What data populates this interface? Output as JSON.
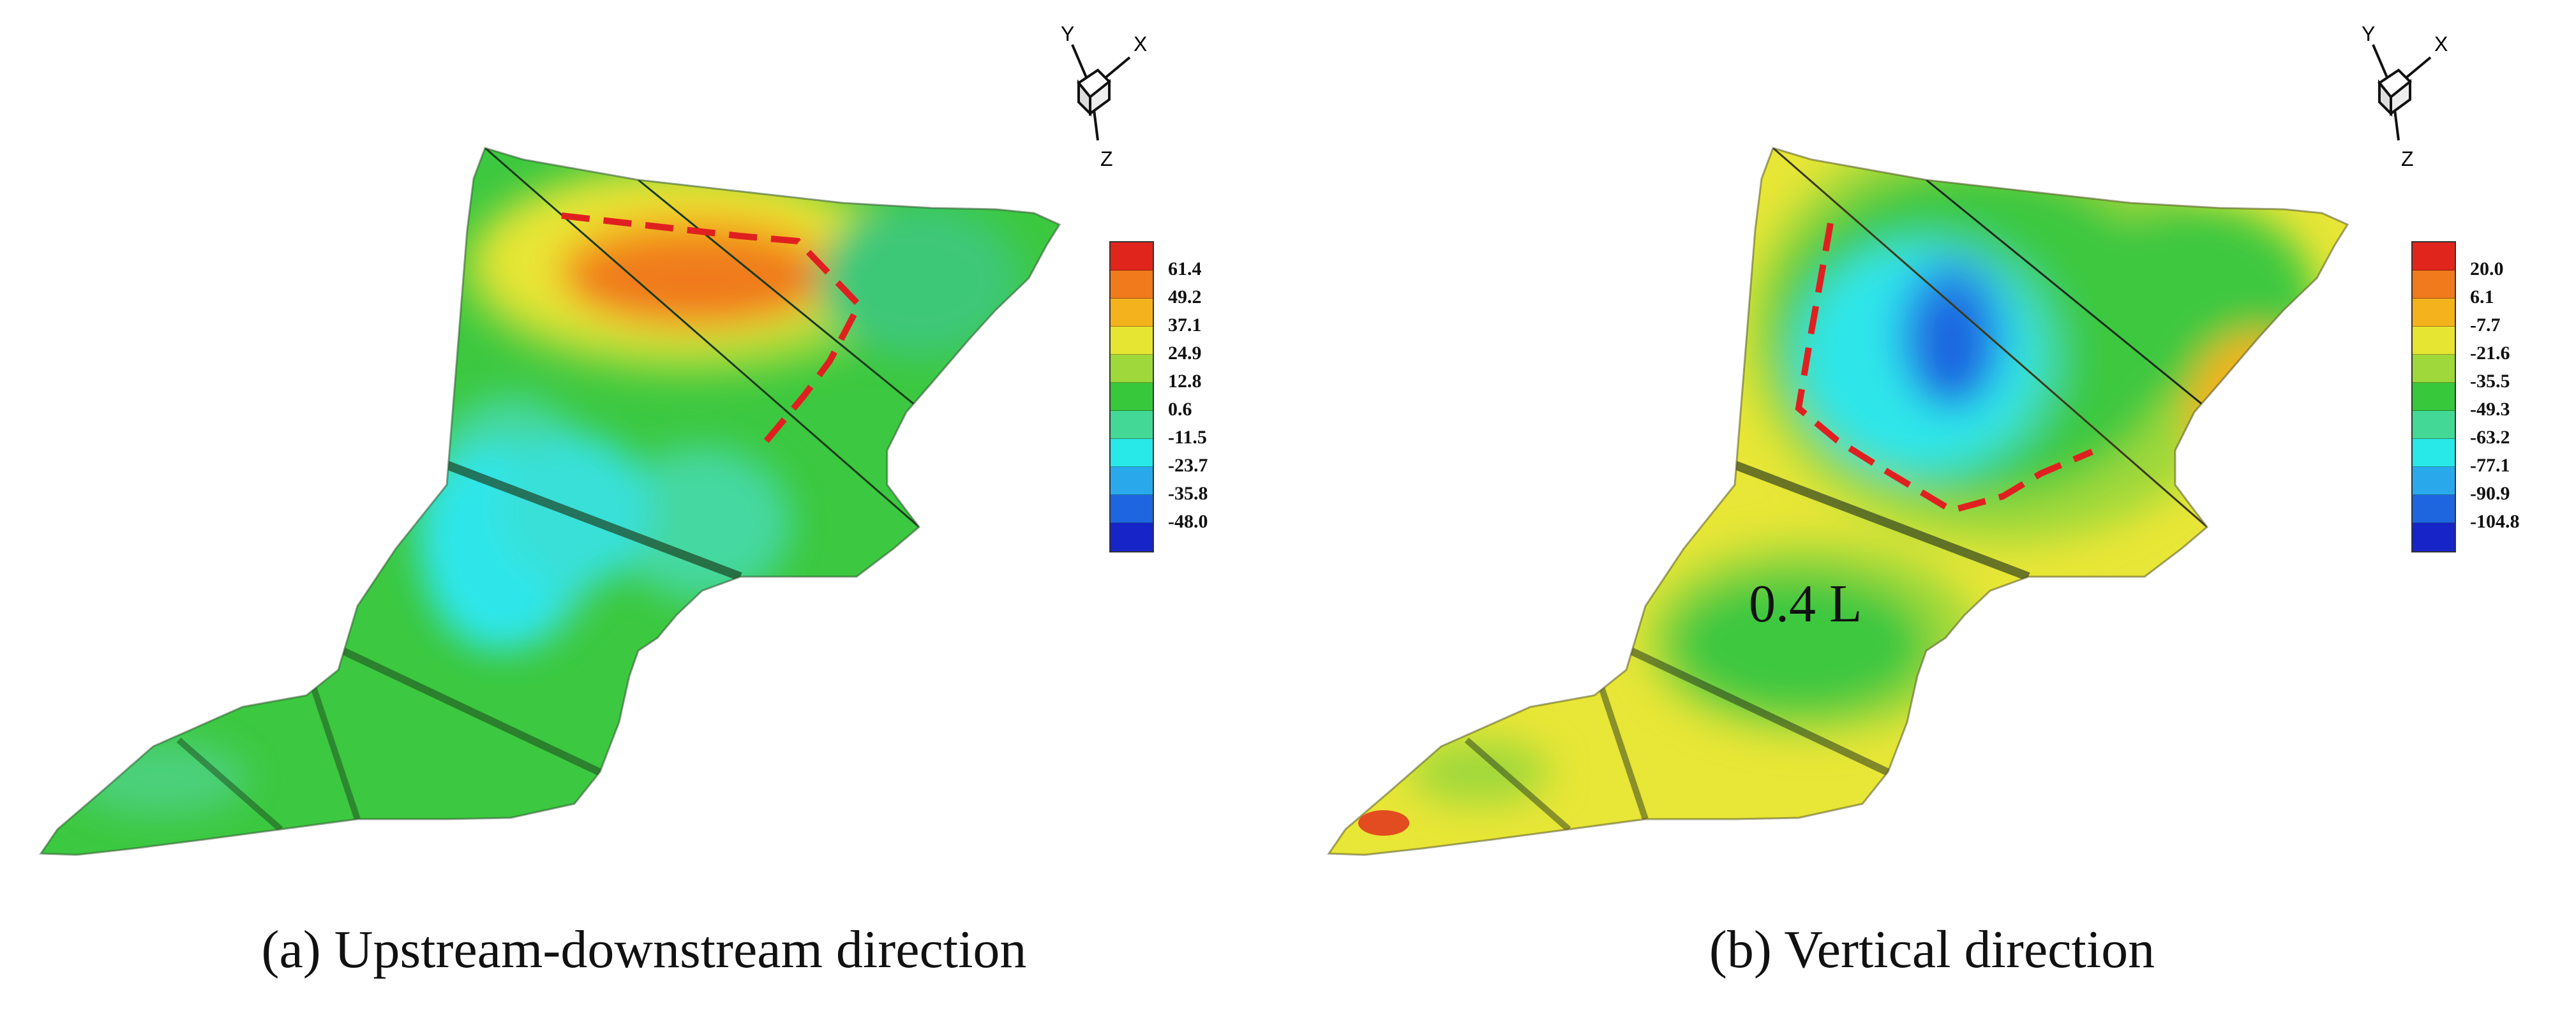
{
  "panels": [
    {
      "caption": "(a) Upstream-downstream direction",
      "legend": [
        "61.4",
        "49.2",
        "37.1",
        "24.9",
        "12.8",
        "0.6",
        "-11.5",
        "-23.7",
        "-35.8",
        "-48.0"
      ],
      "legend_colors": [
        "#e0261c",
        "#f07a1c",
        "#f4b21c",
        "#e6e632",
        "#9ed83a",
        "#37c83c",
        "#44d896",
        "#28e8e8",
        "#2aa8ec",
        "#1e66e0",
        "#1624c8"
      ],
      "axes": {
        "y": "Y",
        "x": "X",
        "z": "Z"
      }
    },
    {
      "caption": "(b) Vertical direction",
      "annotation": "0.4 L",
      "legend": [
        "20.0",
        "6.1",
        "-7.7",
        "-21.6",
        "-35.5",
        "-49.3",
        "-63.2",
        "-77.1",
        "-90.9",
        "-104.8"
      ],
      "legend_colors": [
        "#e0261c",
        "#f07a1c",
        "#f4b21c",
        "#e6e632",
        "#9ed83a",
        "#37c83c",
        "#44d896",
        "#28e8e8",
        "#2aa8ec",
        "#1e66e0",
        "#1624c8"
      ],
      "axes": {
        "y": "Y",
        "x": "X",
        "z": "Z"
      }
    }
  ],
  "colors": {
    "outline": "#333333",
    "highlight": "#e02020",
    "green": "#3cc840",
    "yellow": "#e8e636",
    "cyan": "#2ee6ea",
    "orange": "#f07a1c"
  }
}
